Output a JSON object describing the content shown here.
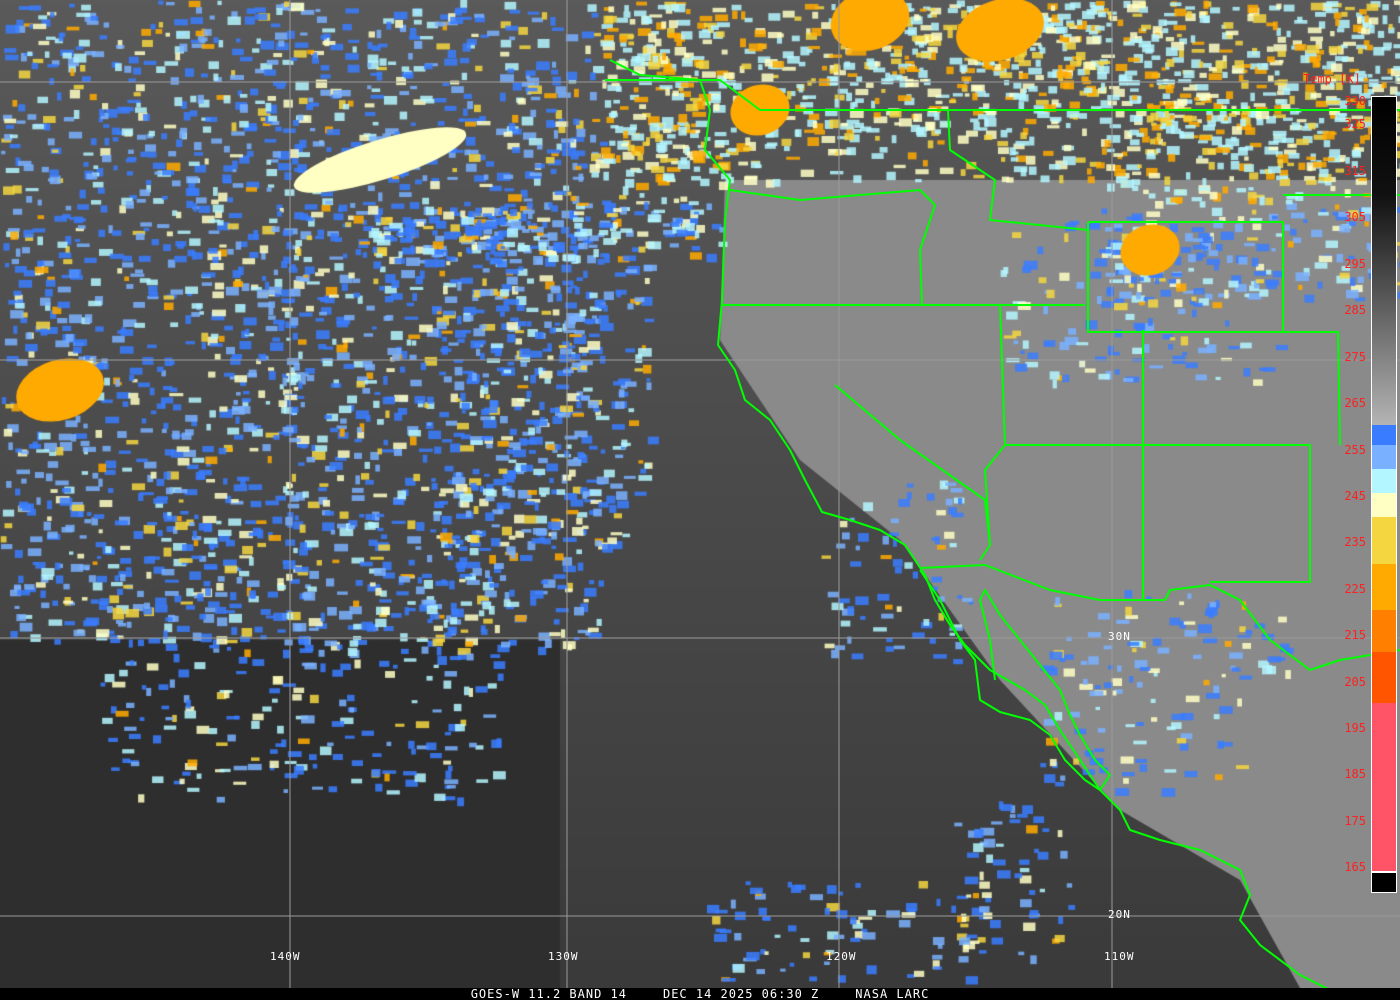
{
  "caption": {
    "satellite": "GOES-W 11.2 BAND 14",
    "datetime": "DEC 14 2025 06:30 Z",
    "source": "NASA LARC"
  },
  "colorbar": {
    "title": "Temp [K]",
    "ticks": [
      "330",
      "325",
      "315",
      "305",
      "295",
      "285",
      "275",
      "265",
      "255",
      "245",
      "235",
      "225",
      "215",
      "205",
      "195",
      "185",
      "175",
      "165"
    ],
    "segments": [
      {
        "from": 330,
        "to": 259,
        "color": "gradient #000000 → #b0b0b0"
      },
      {
        "from": 259,
        "to": 254,
        "color": "#3a7cff"
      },
      {
        "from": 254,
        "to": 250,
        "color": "#79b0ff"
      },
      {
        "from": 250,
        "to": 245,
        "color": "#b4f6ff"
      },
      {
        "from": 245,
        "to": 240,
        "color": "#ffffc4"
      },
      {
        "from": 240,
        "to": 230,
        "color": "#f4d640"
      },
      {
        "from": 230,
        "to": 220,
        "color": "#ffaa00"
      },
      {
        "from": 220,
        "to": 211,
        "color": "#ff8000"
      },
      {
        "from": 211,
        "to": 200,
        "color": "#ff5500"
      },
      {
        "from": 200,
        "to": 164,
        "color": "#ff5468"
      },
      {
        "from": 164,
        "to": 160,
        "color": "#000000"
      }
    ]
  },
  "grid": {
    "longitudes": [
      "140W",
      "130W",
      "120W",
      "110W"
    ],
    "latitudes": [
      "30N",
      "20N"
    ]
  },
  "colors": {
    "boundaries": "#00ff00",
    "gridlines": "#9a9a9a",
    "labels_colorbar": "#ff2020"
  }
}
